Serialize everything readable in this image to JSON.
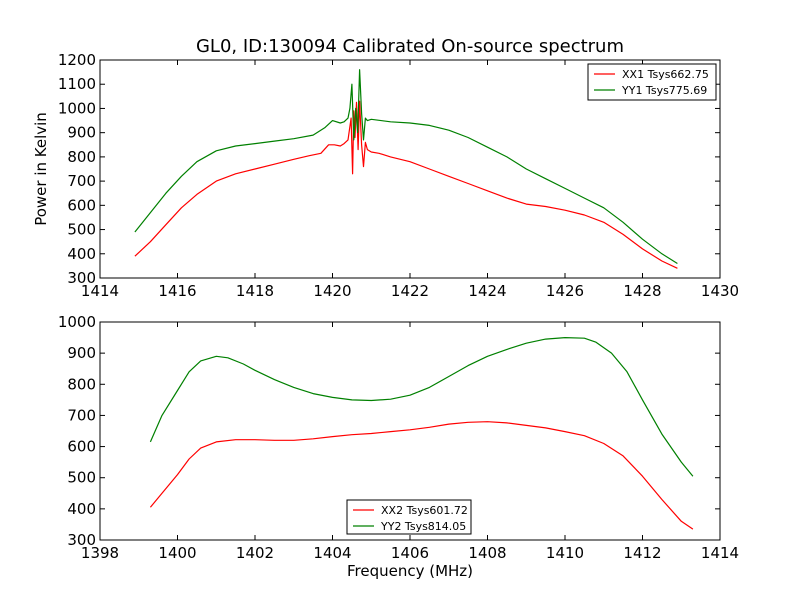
{
  "figure": {
    "title": "GL0, ID:130094 Calibrated On-source spectrum",
    "ylabel": "Power in Kelvin",
    "xlabel": "Frequency (MHz)"
  },
  "colors": {
    "xx": "#ff0000",
    "yy": "#008000"
  },
  "chart_data": [
    {
      "type": "line",
      "title": "GL0, ID:130094 Calibrated On-source spectrum",
      "ylabel": "Power in Kelvin",
      "xlabel": "",
      "xlim": [
        1414,
        1430
      ],
      "ylim": [
        300,
        1200
      ],
      "xticks": [
        1414,
        1416,
        1418,
        1420,
        1422,
        1424,
        1426,
        1428,
        1430
      ],
      "yticks": [
        300,
        400,
        500,
        600,
        700,
        800,
        900,
        1000,
        1100,
        1200
      ],
      "grid": false,
      "legend_position": "upper-right",
      "series": [
        {
          "name": "XX1 Tsys662.75",
          "color": "#ff0000",
          "x": [
            1414.9,
            1415.3,
            1415.7,
            1416.1,
            1416.5,
            1417.0,
            1417.5,
            1418.0,
            1418.5,
            1419.0,
            1419.4,
            1419.7,
            1419.9,
            1420.05,
            1420.2,
            1420.3,
            1420.4,
            1420.48,
            1420.52,
            1420.55,
            1420.58,
            1420.62,
            1420.66,
            1420.7,
            1420.75,
            1420.8,
            1420.85,
            1420.9,
            1421.0,
            1421.2,
            1421.5,
            1422.0,
            1422.5,
            1423.0,
            1423.5,
            1424.0,
            1424.5,
            1425.0,
            1425.5,
            1426.0,
            1426.5,
            1427.0,
            1427.5,
            1428.0,
            1428.5,
            1428.9
          ],
          "y": [
            390,
            450,
            520,
            590,
            645,
            700,
            730,
            750,
            770,
            790,
            805,
            815,
            850,
            850,
            845,
            855,
            870,
            960,
            730,
            990,
            880,
            1025,
            830,
            1030,
            850,
            760,
            860,
            830,
            820,
            815,
            800,
            780,
            750,
            720,
            690,
            660,
            630,
            605,
            595,
            580,
            560,
            530,
            480,
            420,
            370,
            340
          ]
        },
        {
          "name": "YY1 Tsys775.69",
          "color": "#008000",
          "x": [
            1414.9,
            1415.3,
            1415.7,
            1416.1,
            1416.5,
            1417.0,
            1417.5,
            1418.0,
            1418.5,
            1419.0,
            1419.5,
            1419.8,
            1420.0,
            1420.2,
            1420.3,
            1420.4,
            1420.45,
            1420.5,
            1420.55,
            1420.6,
            1420.65,
            1420.7,
            1420.75,
            1420.8,
            1420.85,
            1420.9,
            1421.0,
            1421.5,
            1422.0,
            1422.5,
            1423.0,
            1423.5,
            1424.0,
            1424.5,
            1425.0,
            1425.5,
            1426.0,
            1426.5,
            1427.0,
            1427.5,
            1428.0,
            1428.5,
            1428.9
          ],
          "y": [
            490,
            570,
            650,
            720,
            780,
            825,
            845,
            855,
            865,
            875,
            890,
            920,
            950,
            940,
            945,
            960,
            1000,
            1100,
            870,
            1000,
            900,
            1160,
            980,
            870,
            960,
            950,
            955,
            945,
            940,
            930,
            910,
            880,
            840,
            800,
            750,
            710,
            670,
            630,
            590,
            530,
            460,
            400,
            360
          ]
        }
      ]
    },
    {
      "type": "line",
      "title": "",
      "ylabel": "",
      "xlabel": "Frequency (MHz)",
      "xlim": [
        1398,
        1414
      ],
      "ylim": [
        300,
        1000
      ],
      "xticks": [
        1398,
        1400,
        1402,
        1404,
        1406,
        1408,
        1410,
        1412,
        1414
      ],
      "yticks": [
        300,
        400,
        500,
        600,
        700,
        800,
        900,
        1000
      ],
      "grid": false,
      "legend_position": "lower-center",
      "series": [
        {
          "name": "XX2 Tsys601.72",
          "color": "#ff0000",
          "x": [
            1399.3,
            1399.6,
            1400.0,
            1400.3,
            1400.6,
            1401.0,
            1401.5,
            1402.0,
            1402.5,
            1403.0,
            1403.5,
            1404.0,
            1404.5,
            1405.0,
            1405.5,
            1406.0,
            1406.5,
            1407.0,
            1407.5,
            1408.0,
            1408.5,
            1409.0,
            1409.5,
            1410.0,
            1410.5,
            1411.0,
            1411.5,
            1412.0,
            1412.5,
            1413.0,
            1413.3
          ],
          "y": [
            405,
            450,
            510,
            560,
            595,
            615,
            622,
            622,
            620,
            620,
            625,
            632,
            638,
            642,
            648,
            654,
            662,
            672,
            678,
            680,
            676,
            668,
            660,
            648,
            635,
            610,
            570,
            505,
            430,
            360,
            335
          ]
        },
        {
          "name": "YY2 Tsys814.05",
          "color": "#008000",
          "x": [
            1399.3,
            1399.6,
            1400.0,
            1400.3,
            1400.6,
            1401.0,
            1401.3,
            1401.7,
            1402.0,
            1402.5,
            1403.0,
            1403.5,
            1404.0,
            1404.5,
            1405.0,
            1405.5,
            1406.0,
            1406.5,
            1407.0,
            1407.5,
            1408.0,
            1408.5,
            1409.0,
            1409.5,
            1410.0,
            1410.5,
            1410.8,
            1411.2,
            1411.6,
            1412.0,
            1412.5,
            1413.0,
            1413.3
          ],
          "y": [
            615,
            700,
            780,
            840,
            875,
            890,
            885,
            865,
            845,
            815,
            790,
            770,
            758,
            750,
            748,
            752,
            765,
            790,
            825,
            860,
            890,
            912,
            932,
            945,
            950,
            948,
            935,
            900,
            840,
            750,
            640,
            550,
            505
          ]
        }
      ]
    }
  ]
}
